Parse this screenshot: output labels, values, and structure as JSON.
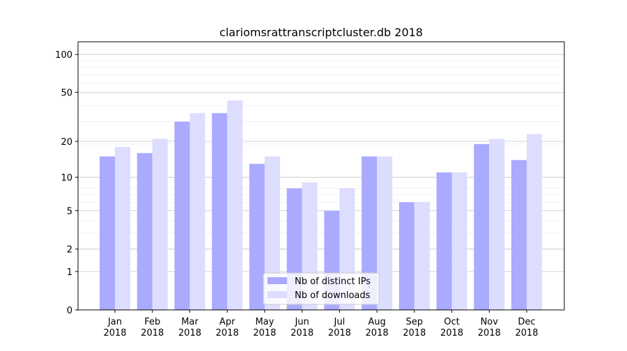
{
  "chart_data": {
    "type": "bar",
    "title": "clariomsrattranscriptcluster.db 2018",
    "xlabel": "",
    "ylabel": "",
    "yscale": "log(1+y)",
    "ylim": [
      0,
      120
    ],
    "yticks": [
      0,
      1,
      2,
      5,
      10,
      20,
      50,
      100
    ],
    "grid": true,
    "legend_placement": "lower-center",
    "categories": [
      "Jan\n2018",
      "Feb\n2018",
      "Mar\n2018",
      "Apr\n2018",
      "May\n2018",
      "Jun\n2018",
      "Jul\n2018",
      "Aug\n2018",
      "Sep\n2018",
      "Oct\n2018",
      "Nov\n2018",
      "Dec\n2018"
    ],
    "series": [
      {
        "name": "Nb of distinct IPs",
        "color": "#aaaaff",
        "values": [
          15,
          16,
          29,
          34,
          13,
          8,
          5,
          15,
          6,
          11,
          19,
          14
        ]
      },
      {
        "name": "Nb of downloads",
        "color": "#ddddff",
        "values": [
          18,
          21,
          34,
          43,
          15,
          9,
          8,
          15,
          6,
          11,
          21,
          23
        ]
      }
    ]
  }
}
